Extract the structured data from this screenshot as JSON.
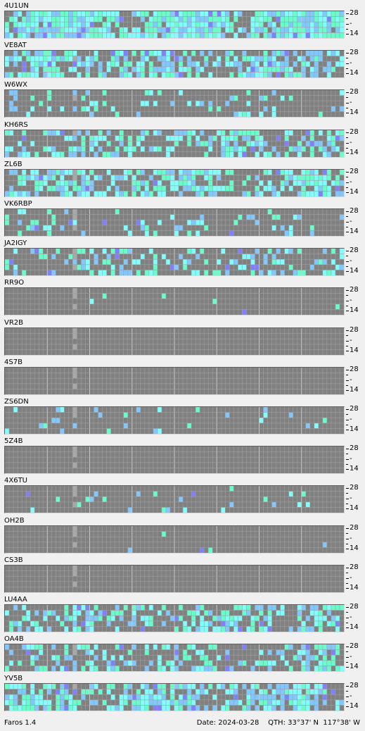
{
  "app": {
    "name": "Faros 1.4"
  },
  "status": {
    "date_label": "Date:",
    "date": "2024-03-28",
    "qth_label": "QTH:",
    "latitude": "33°37' N",
    "longitude": "117°38' W"
  },
  "scale": {
    "top": "28",
    "mid": "-",
    "bottom": "14"
  },
  "colors": {
    "empty": "#808080",
    "grid_line": "#a0a0a0",
    "hour_line": "#c8c8c8",
    "marker": "#a8a8a8",
    "strong": "#66ffcc",
    "medium": "#80ffff",
    "weak": "#80c8ff",
    "faint": "#8080ff"
  },
  "beacons": [
    {
      "callsign": "4U1UN",
      "activity": 0.78
    },
    {
      "callsign": "VE8AT",
      "activity": 0.55
    },
    {
      "callsign": "W6WX",
      "activity": 0.18
    },
    {
      "callsign": "KH6RS",
      "activity": 0.45
    },
    {
      "callsign": "ZL6B",
      "activity": 0.52
    },
    {
      "callsign": "VK6RBP",
      "activity": 0.12
    },
    {
      "callsign": "JA2IGY",
      "activity": 0.3
    },
    {
      "callsign": "RR9O",
      "activity": 0.02
    },
    {
      "callsign": "VR2B",
      "activity": 0.0
    },
    {
      "callsign": "4S7B",
      "activity": 0.0
    },
    {
      "callsign": "ZS6DN",
      "activity": 0.07
    },
    {
      "callsign": "5Z4B",
      "activity": 0.0
    },
    {
      "callsign": "4X6TU",
      "activity": 0.05
    },
    {
      "callsign": "OH2B",
      "activity": 0.01
    },
    {
      "callsign": "CS3B",
      "activity": 0.0
    },
    {
      "callsign": "LU4AA",
      "activity": 0.4
    },
    {
      "callsign": "OA4B",
      "activity": 0.35
    },
    {
      "callsign": "YV5B",
      "activity": 0.55
    }
  ]
}
